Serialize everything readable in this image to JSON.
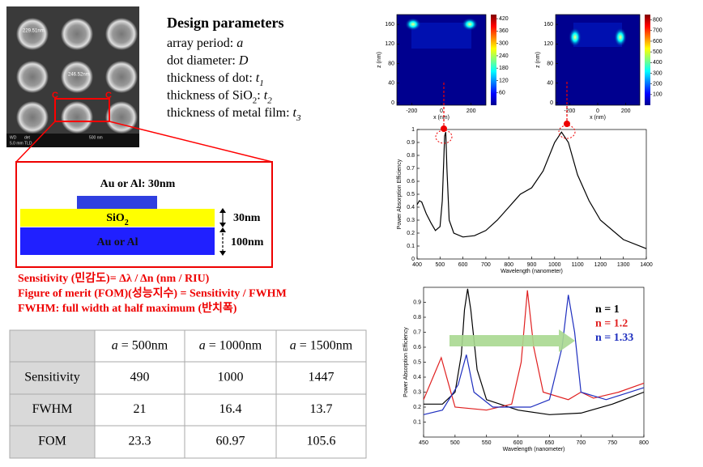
{
  "sem": {
    "labels": [
      "229.51nm",
      "246.52nm",
      "C",
      "C"
    ],
    "footer": [
      "WD",
      "5.0 mm",
      "det",
      "TLD",
      "500 nm"
    ]
  },
  "design": {
    "title": "Design parameters",
    "items": [
      {
        "label": "array period: ",
        "symbol": "a"
      },
      {
        "label": "dot diameter: ",
        "symbol": "D"
      },
      {
        "label": "thickness of dot: ",
        "symbol": "t",
        "sub": "1"
      },
      {
        "label": "thickness  of SiO",
        "sub0": "2",
        "label2": ": ",
        "symbol": "t",
        "sub": "2"
      },
      {
        "label": "thickness of metal film: ",
        "symbol": "t",
        "sub": "3"
      }
    ]
  },
  "diagram": {
    "top": "Au or Al: 30nm",
    "middle": "SiO",
    "middle_sub": "2",
    "middle_dim": "30nm",
    "bottom": "Au or Al",
    "bottom_dim": "100nm"
  },
  "notes": [
    "Sensitivity (민감도)= Δλ / Δn (nm / RIU)",
    "Figure of merit (FOM)(성능지수) = Sensitivity  / FWHM",
    "FWHM: full width at half maximum (반치폭)"
  ],
  "table": {
    "header": [
      {
        "var": "a",
        "text": " = 500nm"
      },
      {
        "var": "a",
        "text": " = 1000nm"
      },
      {
        "var": "a",
        "text": " = 1500nm"
      }
    ],
    "rows": [
      [
        "Sensitivity",
        "490",
        "1000",
        "1447"
      ],
      [
        "FWHM",
        "21",
        "16.4",
        "13.7"
      ],
      [
        "FOM",
        "23.3",
        "60.97",
        "105.6"
      ]
    ]
  },
  "field_maps": [
    {
      "xlabel": "x (nm)",
      "ylabel": "z (nm)",
      "xlim": [
        -300,
        300
      ],
      "xticks": [
        -200,
        0,
        200
      ],
      "ylim": [
        -5,
        180
      ],
      "yticks": [
        0,
        40,
        80,
        120,
        160
      ],
      "cbar_lim": [
        0,
        440
      ],
      "cbar_ticks": [
        60,
        120,
        180,
        240,
        300,
        360,
        420
      ]
    },
    {
      "xlabel": "x (nm)",
      "ylabel": "z (nm)",
      "xlim": [
        -300,
        300
      ],
      "xticks": [
        -200,
        0,
        200
      ],
      "ylim": [
        -5,
        180
      ],
      "yticks": [
        0,
        40,
        80,
        120,
        160
      ],
      "cbar_lim": [
        0,
        850
      ],
      "cbar_ticks": [
        100,
        200,
        300,
        400,
        500,
        600,
        700,
        800
      ]
    }
  ],
  "spectrum": {
    "type": "line",
    "xlabel": "Wavelength (nanometer)",
    "ylabel": "Power Absorption Efficiency",
    "xlim": [
      400,
      1400
    ],
    "xticks": [
      400,
      500,
      600,
      700,
      800,
      900,
      1000,
      1100,
      1200,
      1300,
      1400
    ],
    "ylim": [
      0,
      1
    ],
    "yticks": [
      0,
      0.1,
      0.2,
      0.3,
      0.4,
      0.5,
      0.6,
      0.7,
      0.8,
      0.9,
      1
    ],
    "series": [
      {
        "color": "#000000",
        "x": [
          400,
          410,
          420,
          440,
          460,
          480,
          500,
          510,
          520,
          525,
          530,
          540,
          560,
          600,
          650,
          700,
          750,
          800,
          850,
          900,
          950,
          1000,
          1030,
          1060,
          1100,
          1150,
          1200,
          1300,
          1400
        ],
        "values": [
          0.42,
          0.45,
          0.44,
          0.35,
          0.28,
          0.22,
          0.25,
          0.45,
          0.95,
          0.98,
          0.7,
          0.3,
          0.2,
          0.17,
          0.18,
          0.22,
          0.3,
          0.4,
          0.5,
          0.55,
          0.68,
          0.9,
          0.98,
          0.9,
          0.65,
          0.45,
          0.3,
          0.15,
          0.08
        ]
      }
    ]
  },
  "spectra_n": {
    "type": "line",
    "xlabel": "Wavelength (nanometer)",
    "ylabel": "Power Absorption Efficiency",
    "xlim": [
      450,
      800
    ],
    "xticks": [
      450,
      500,
      550,
      600,
      650,
      700,
      750,
      800
    ],
    "ylim": [
      0,
      1
    ],
    "yticks": [
      0.1,
      0.2,
      0.3,
      0.4,
      0.5,
      0.6,
      0.7,
      0.8,
      0.9
    ],
    "series": [
      {
        "name": "n = 1",
        "color": "#000000",
        "x": [
          450,
          480,
          500,
          510,
          515,
          520,
          525,
          535,
          550,
          600,
          650,
          700,
          750,
          800
        ],
        "values": [
          0.22,
          0.22,
          0.3,
          0.55,
          0.85,
          0.99,
          0.85,
          0.45,
          0.25,
          0.18,
          0.15,
          0.16,
          0.22,
          0.3
        ]
      },
      {
        "name": "n = 1.2",
        "color": "#e02020",
        "x": [
          450,
          465,
          478,
          490,
          500,
          550,
          590,
          605,
          615,
          625,
          640,
          680,
          700,
          720,
          760,
          800
        ],
        "values": [
          0.25,
          0.4,
          0.53,
          0.35,
          0.2,
          0.18,
          0.22,
          0.5,
          0.98,
          0.6,
          0.3,
          0.25,
          0.3,
          0.26,
          0.3,
          0.36
        ]
      },
      {
        "name": "n = 1.33",
        "color": "#1f2fbf",
        "x": [
          450,
          480,
          505,
          518,
          530,
          560,
          620,
          650,
          670,
          680,
          690,
          700,
          740,
          800
        ],
        "values": [
          0.15,
          0.18,
          0.35,
          0.55,
          0.3,
          0.2,
          0.2,
          0.25,
          0.6,
          0.95,
          0.7,
          0.3,
          0.25,
          0.33
        ]
      }
    ]
  }
}
